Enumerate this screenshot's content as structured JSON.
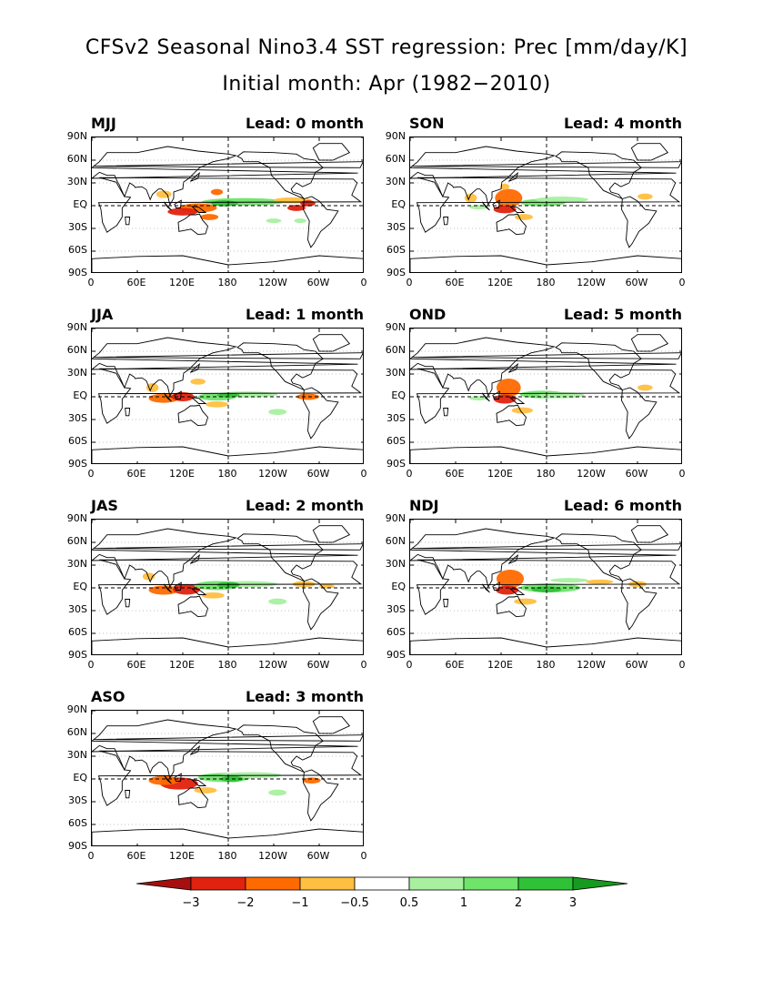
{
  "title": "CFSv2 Seasonal Nino3.4 SST regression: Prec [mm/day/K]",
  "subtitle": "Initial month: Apr (1982−2010)",
  "lat_labels": [
    "90N",
    "60N",
    "30N",
    "EQ",
    "30S",
    "60S",
    "90S"
  ],
  "lon_labels": [
    "0",
    "60E",
    "120E",
    "180",
    "120W",
    "60W",
    "0"
  ],
  "panels": [
    {
      "season": "MJJ",
      "lead": "Lead: 0 month"
    },
    {
      "season": "SON",
      "lead": "Lead: 4 month"
    },
    {
      "season": "JJA",
      "lead": "Lead: 1 month"
    },
    {
      "season": "OND",
      "lead": "Lead: 5 month"
    },
    {
      "season": "JAS",
      "lead": "Lead: 2 month"
    },
    {
      "season": "NDJ",
      "lead": "Lead: 6 month"
    },
    {
      "season": "ASO",
      "lead": "Lead: 3 month"
    }
  ],
  "colorbar": {
    "labels": [
      "−3",
      "−2",
      "−1",
      "−0.5",
      "0.5",
      "1",
      "2",
      "3"
    ],
    "colors": [
      "#a50f0f",
      "#e0220e",
      "#ff6a00",
      "#ffbf40",
      "#ffffff",
      "#a8f0a0",
      "#6fe46a",
      "#2fc236",
      "#179b1f"
    ]
  },
  "colors": {
    "neg_strong": "#e0220e",
    "neg_mid": "#ff6a00",
    "neg_weak": "#ffbf40",
    "pos_weak": "#a8f0a0",
    "pos_mid": "#6fe46a",
    "pos_strong": "#2fc236"
  }
}
